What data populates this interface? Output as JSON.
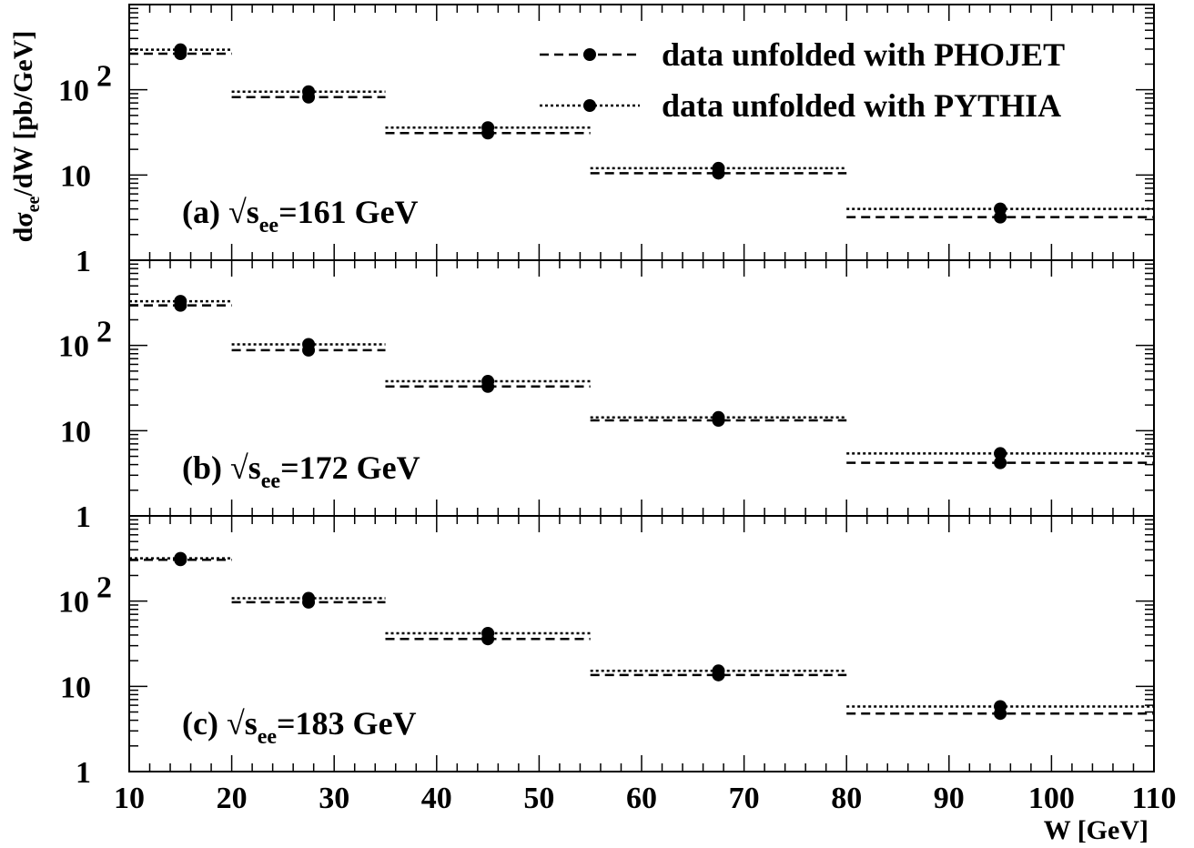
{
  "chart_data": {
    "type": "line",
    "scale": "log",
    "ylabel": "dσ_ee/dW [pb/GeV]",
    "ylabel_parts": {
      "d": "d",
      "sigma": "σ",
      "sub": "ee",
      "rest": "/dW [pb/GeV]"
    },
    "xlabel": "W [GeV]",
    "xlim": [
      10,
      110
    ],
    "ylim": [
      1,
      1000
    ],
    "x_ticks": [
      "10",
      "20",
      "30",
      "40",
      "50",
      "60",
      "70",
      "80",
      "90",
      "100",
      "110"
    ],
    "y_ticks": {
      "one": "1",
      "ten": "10",
      "hundred_base": "10",
      "hundred_exp": "2"
    },
    "bins": [
      [
        10,
        20
      ],
      [
        20,
        35
      ],
      [
        35,
        55
      ],
      [
        55,
        80
      ],
      [
        80,
        110
      ]
    ],
    "bin_centers": [
      15,
      27.5,
      45,
      67.5,
      95
    ],
    "legend": [
      {
        "label": "data unfolded with PHOJET",
        "style": "dashed"
      },
      {
        "label": "data unfolded with PYTHIA",
        "style": "dotted"
      }
    ],
    "panels": [
      {
        "id": "a",
        "label_prefix": "(a) √s",
        "label_sub": "ee",
        "label_suffix": "=161 GeV",
        "series": [
          {
            "name": "data unfolded with PHOJET",
            "style": "dashed",
            "values": [
              265,
              82,
              31,
              10.5,
              3.2
            ]
          },
          {
            "name": "data unfolded with PYTHIA",
            "style": "dotted",
            "values": [
              295,
              95,
              36,
              12,
              4.0
            ]
          }
        ]
      },
      {
        "id": "b",
        "label_prefix": "(b) √s",
        "label_sub": "ee",
        "label_suffix": "=172 GeV",
        "series": [
          {
            "name": "data unfolded with PHOJET",
            "style": "dashed",
            "values": [
              295,
              88,
              33,
              13.2,
              4.2
            ]
          },
          {
            "name": "data unfolded with PYTHIA",
            "style": "dotted",
            "values": [
              330,
              103,
              38,
              14.3,
              5.4
            ]
          }
        ]
      },
      {
        "id": "c",
        "label_prefix": "(c) √s",
        "label_sub": "ee",
        "label_suffix": "=183 GeV",
        "series": [
          {
            "name": "data unfolded with PHOJET",
            "style": "dashed",
            "values": [
              305,
              97,
              36,
              13.6,
              4.8
            ]
          },
          {
            "name": "data unfolded with PYTHIA",
            "style": "dotted",
            "values": [
              318,
              108,
              42,
              15.2,
              5.8
            ]
          }
        ]
      }
    ]
  }
}
